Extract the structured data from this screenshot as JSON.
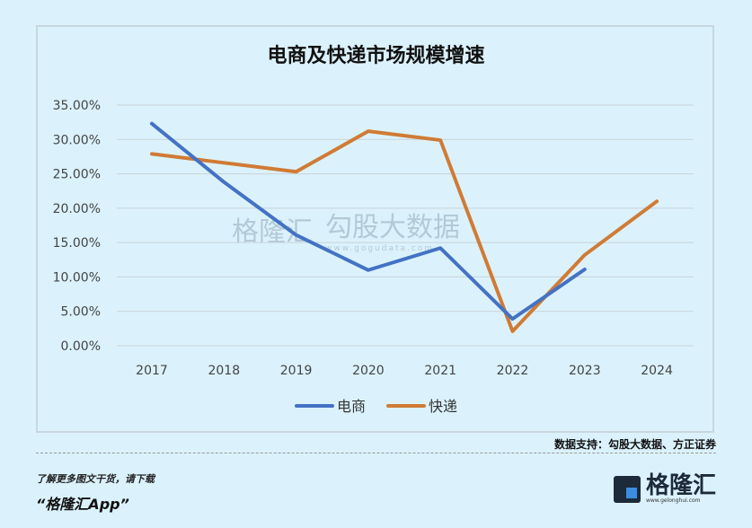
{
  "chart_data": {
    "type": "line",
    "title": "电商及快递市场规模增速",
    "categories": [
      "2017",
      "2018",
      "2019",
      "2020",
      "2021",
      "2022",
      "2023",
      "2024"
    ],
    "series": [
      {
        "name": "电商",
        "color": "#4472c4",
        "values": [
          32.3,
          23.8,
          16.1,
          11.0,
          14.2,
          3.9,
          11.1,
          null
        ]
      },
      {
        "name": "快递",
        "color": "#d07b35",
        "values": [
          27.9,
          26.6,
          25.3,
          31.2,
          29.9,
          2.1,
          13.2,
          21.0
        ]
      }
    ],
    "yticks": [
      "0.00%",
      "5.00%",
      "10.00%",
      "15.00%",
      "20.00%",
      "25.00%",
      "30.00%",
      "35.00%"
    ],
    "ylim": [
      0,
      35
    ],
    "grid": true,
    "legend": "bottom"
  },
  "watermark": {
    "brand": "格隆汇",
    "name": "勾股大数据",
    "url": "www.gogudata.com"
  },
  "footer": {
    "source": "数据支持：勾股大数据、方正证券",
    "promo_line1": "了解更多图文干货，请下载",
    "promo_line2": "“格隆汇App”",
    "logo_text": "格隆汇",
    "logo_url": "www.gelonghui.com"
  }
}
